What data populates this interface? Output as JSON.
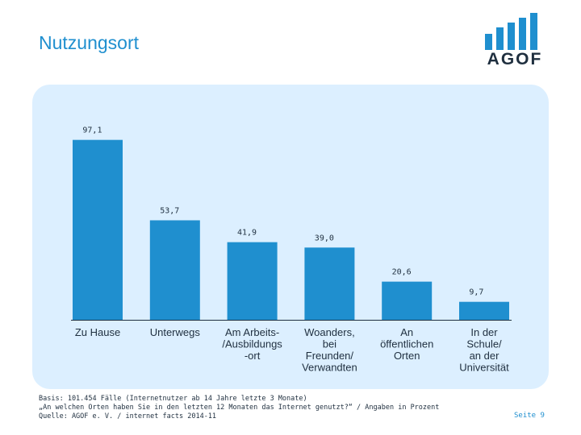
{
  "header": {
    "title": "Nutzungsort"
  },
  "logo": {
    "text": "AGOF"
  },
  "colors": {
    "accent": "#1f8fcf",
    "panel": "#dcefff",
    "text": "#1f2f3f",
    "logo_bars": "#1f8fcf"
  },
  "chart_data": {
    "type": "bar",
    "categories": [
      [
        "Zu Hause"
      ],
      [
        "Unterwegs"
      ],
      [
        "Am Arbeits-",
        "/Ausbildungs",
        "-ort"
      ],
      [
        "Woanders,",
        "bei",
        "Freunden/",
        "Verwandten"
      ],
      [
        "An",
        "öffentlichen",
        "Orten"
      ],
      [
        "In der",
        "Schule/",
        "an der",
        "Universität"
      ]
    ],
    "values": [
      97.1,
      53.7,
      41.9,
      39.0,
      20.6,
      9.7
    ],
    "value_labels": [
      "97,1",
      "53,7",
      "41,9",
      "39,0",
      "20,6",
      "9,7"
    ],
    "ylim": [
      0,
      100
    ],
    "grid": false,
    "legend": "none"
  },
  "footer": {
    "lines": [
      "Basis: 101.454 Fälle (Internetnutzer ab 14 Jahre letzte 3 Monate)",
      "„An welchen Orten haben Sie in den letzten 12 Monaten das Internet genutzt?“ / Angaben in Prozent",
      "Quelle: AGOF e. V. / internet facts 2014-11"
    ],
    "page": "Seite 9"
  }
}
